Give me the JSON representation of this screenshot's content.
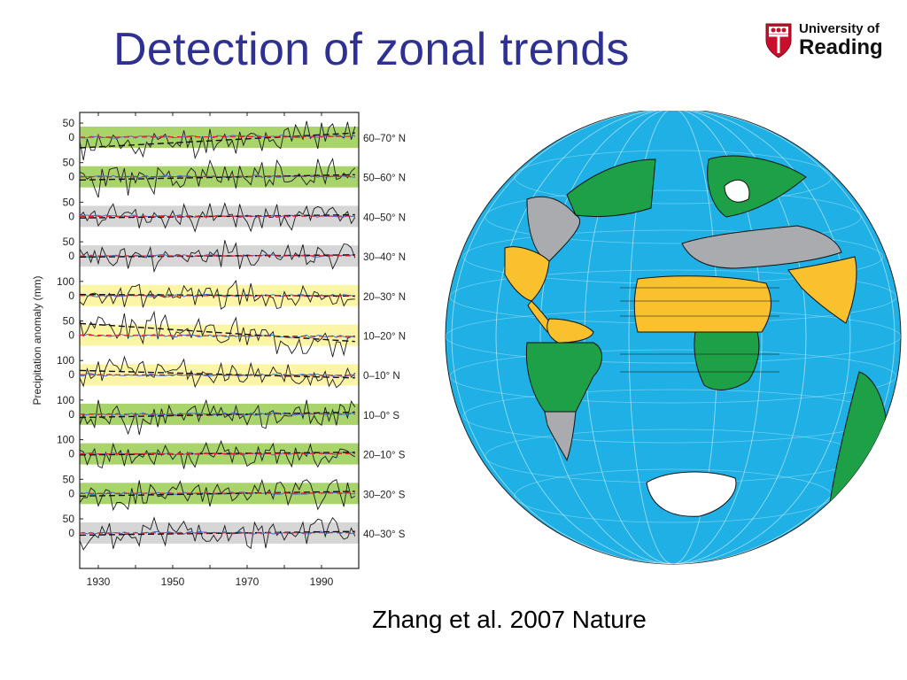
{
  "slide": {
    "title": "Detection of zonal trends",
    "citation": "Zhang et al. 2007 Nature"
  },
  "logo": {
    "line1": "University of",
    "line2": "Reading",
    "icon": "shield-crest-icon",
    "shield_color": "#C8102E"
  },
  "colors": {
    "title": "#2E3192",
    "ocean": "#1FB1E6",
    "green_band": "#A9D36B",
    "yellow_band": "#FDF5A6",
    "grey_band": "#D6D6D6",
    "map_green": "#1DA046",
    "map_yellow": "#F9C12E",
    "map_grey": "#A9ABAE",
    "observed_line": "#1A1A1A",
    "model_line": "#3A6FD8",
    "trend_line": "#E0202B"
  },
  "chart_data": {
    "type": "line",
    "ylabel": "Precipitation anomaly (mm)",
    "xlim": [
      1925,
      2000
    ],
    "x_ticks": [
      "1930",
      "1950",
      "1970",
      "1990"
    ],
    "panels": [
      {
        "label": "60–70° N",
        "band": "green",
        "ytop": "50",
        "yzero": "0",
        "seed": 11,
        "amp": 0.55,
        "observed_trend": [
          -20,
          8
        ]
      },
      {
        "label": "50–60° N",
        "band": "green",
        "ytop": "50",
        "yzero": "0",
        "seed": 23,
        "amp": 0.6,
        "observed_trend": [
          -6,
          4
        ]
      },
      {
        "label": "40–50° N",
        "band": "grey",
        "ytop": "50",
        "yzero": "0",
        "seed": 37,
        "amp": 0.5,
        "observed_trend": [
          -3,
          3
        ]
      },
      {
        "label": "30–40° N",
        "band": "grey",
        "ytop": "50",
        "yzero": "0",
        "seed": 41,
        "amp": 0.55,
        "observed_trend": [
          -2,
          2
        ]
      },
      {
        "label": "20–30° N",
        "band": "yellow",
        "ytop": "100",
        "yzero": "0",
        "seed": 53,
        "amp": 0.5,
        "observed_trend": [
          2,
          -1
        ]
      },
      {
        "label": "10–20° N",
        "band": "yellow",
        "ytop": "50",
        "yzero": "0",
        "seed": 67,
        "amp": 0.6,
        "observed_trend": [
          22,
          -12
        ]
      },
      {
        "label": "0–10° N",
        "band": "yellow",
        "ytop": "100",
        "yzero": "0",
        "seed": 71,
        "amp": 0.55,
        "observed_trend": [
          8,
          -6
        ]
      },
      {
        "label": "10–0° S",
        "band": "green",
        "ytop": "100",
        "yzero": "0",
        "seed": 83,
        "amp": 0.6,
        "observed_trend": [
          -6,
          4
        ]
      },
      {
        "label": "20–10° S",
        "band": "green",
        "ytop": "100",
        "yzero": "0",
        "seed": 97,
        "amp": 0.55,
        "observed_trend": [
          -2,
          3
        ]
      },
      {
        "label": "30–20° S",
        "band": "green",
        "ytop": "50",
        "yzero": "0",
        "seed": 101,
        "amp": 0.6,
        "observed_trend": [
          -5,
          4
        ]
      },
      {
        "label": "40–30° S",
        "band": "grey",
        "ytop": "50",
        "yzero": "0",
        "seed": 113,
        "amp": 0.55,
        "observed_trend": [
          -4,
          3
        ]
      }
    ]
  },
  "globe": {
    "bands_color_order": [
      "green",
      "grey",
      "grey",
      "yellow",
      "yellow",
      "yellow",
      "green",
      "green",
      "green",
      "grey"
    ]
  }
}
